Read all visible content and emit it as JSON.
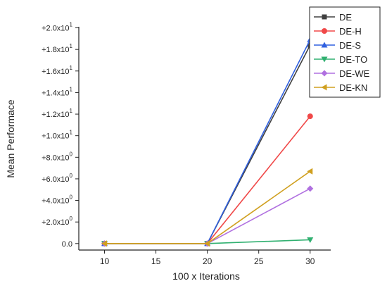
{
  "chart_data": {
    "type": "line",
    "xlabel": "100 x Iterations",
    "ylabel": "Mean Performace",
    "x": [
      10,
      20,
      30
    ],
    "xlim": [
      7.5,
      32
    ],
    "ylim": [
      -0.6,
      20.1
    ],
    "xticks": [
      10,
      15,
      20,
      25,
      30
    ],
    "xtick_labels": [
      "10",
      "15",
      "20",
      "25",
      "30"
    ],
    "yticks": [
      0,
      2,
      4,
      6,
      8,
      10,
      12,
      14,
      16,
      18,
      20
    ],
    "ytick_labels": [
      {
        "main": "0.0",
        "exp": ""
      },
      {
        "main": "+2.0x10",
        "exp": "0"
      },
      {
        "main": "+4.0x10",
        "exp": "0"
      },
      {
        "main": "+6.0x10",
        "exp": "0"
      },
      {
        "main": "+8.0x10",
        "exp": "0"
      },
      {
        "main": "+1.0x10",
        "exp": "1"
      },
      {
        "main": "+1.2x10",
        "exp": "1"
      },
      {
        "main": "+1.4x10",
        "exp": "1"
      },
      {
        "main": "+1.6x10",
        "exp": "1"
      },
      {
        "main": "+1.8x10",
        "exp": "1"
      },
      {
        "main": "+2.0x10",
        "exp": "1"
      }
    ],
    "grid": false,
    "legend_position": "top-right",
    "series": [
      {
        "name": "DE",
        "color": "#404040",
        "marker": "square",
        "values": [
          0,
          0,
          18.4
        ]
      },
      {
        "name": "DE-H",
        "color": "#f04848",
        "marker": "circle",
        "values": [
          0,
          0,
          11.8
        ]
      },
      {
        "name": "DE-S",
        "color": "#3060e0",
        "marker": "triangle-up",
        "values": [
          0,
          0,
          18.9
        ]
      },
      {
        "name": "DE-TO",
        "color": "#30b070",
        "marker": "triangle-down",
        "values": [
          0,
          0,
          0.35
        ]
      },
      {
        "name": "DE-WE",
        "color": "#b070e0",
        "marker": "diamond",
        "values": [
          0,
          0,
          5.1
        ]
      },
      {
        "name": "DE-KN",
        "color": "#d0a020",
        "marker": "triangle-left",
        "values": [
          0,
          0,
          6.7
        ]
      }
    ]
  }
}
